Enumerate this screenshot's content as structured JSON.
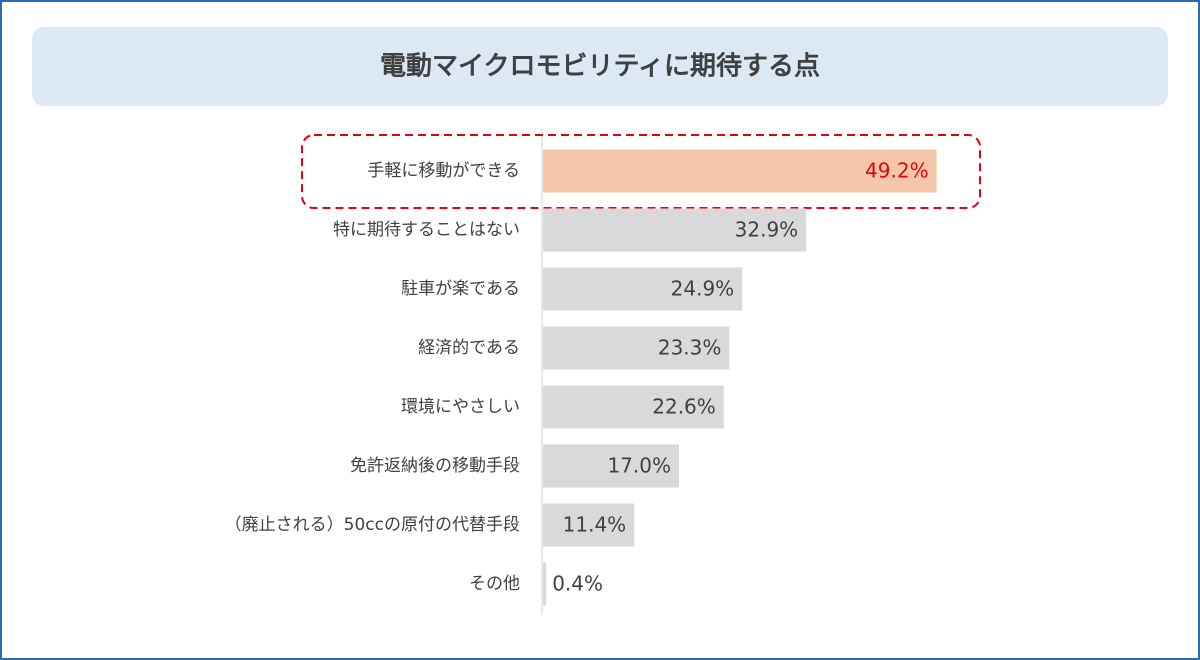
{
  "chart_data": {
    "type": "hbar",
    "title": "電動マイクロモビリティに期待する点",
    "categories": [
      "手軽に移動ができる",
      "特に期待することはない",
      "駐車が楽である",
      "経済的である",
      "環境にやさしい",
      "免許返納後の移動手段",
      "（廃止される）50ccの原付の代替手段",
      "その他"
    ],
    "values": [
      49.2,
      32.9,
      24.9,
      23.3,
      22.6,
      17.0,
      11.4,
      0.4
    ],
    "value_labels": [
      "49.2%",
      "32.9%",
      "24.9%",
      "23.3%",
      "22.6%",
      "17.0%",
      "11.4%",
      "0.4%"
    ],
    "colors": [
      "#f6c6aa",
      "#d9d9d9",
      "#d9d9d9",
      "#d9d9d9",
      "#d9d9d9",
      "#d9d9d9",
      "#d9d9d9",
      "#d9d9d9"
    ],
    "label_colors": [
      "#e60012",
      "#404040",
      "#404040",
      "#404040",
      "#404040",
      "#404040",
      "#404040",
      "#404040"
    ]
  }
}
